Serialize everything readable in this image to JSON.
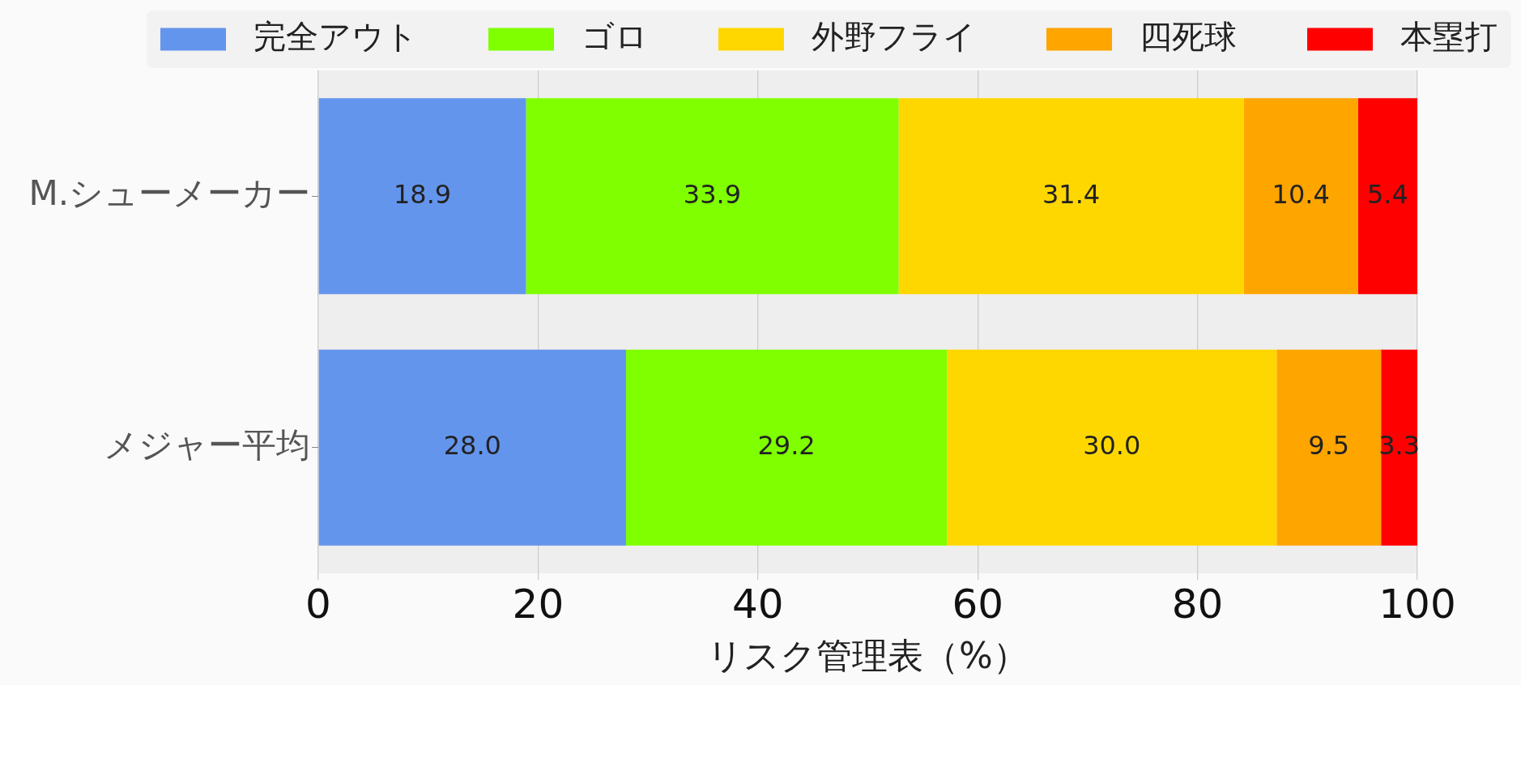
{
  "chart_data": {
    "type": "bar",
    "orientation": "horizontal",
    "stacked": true,
    "categories": [
      "M.シューメーカー",
      "メジャー平均"
    ],
    "series": [
      {
        "name": "完全アウト",
        "color": "#6495ed",
        "values": [
          18.9,
          28.0
        ],
        "value_labels": [
          "18.9",
          "28.0"
        ]
      },
      {
        "name": "ゴロ",
        "color": "#7fff00",
        "values": [
          33.9,
          29.2
        ],
        "value_labels": [
          "33.9",
          "29.2"
        ]
      },
      {
        "name": "外野フライ",
        "color": "#ffd700",
        "values": [
          31.4,
          30.0
        ],
        "value_labels": [
          "31.4",
          "30.0"
        ]
      },
      {
        "name": "四死球",
        "color": "#ffa500",
        "values": [
          10.4,
          9.5
        ],
        "value_labels": [
          "10.4",
          "9.5"
        ]
      },
      {
        "name": "本塁打",
        "color": "#ff0000",
        "values": [
          5.4,
          3.3
        ],
        "value_labels": [
          "5.4",
          "3.3"
        ]
      }
    ],
    "xlim": [
      0,
      100
    ],
    "xticks": [
      0,
      20,
      40,
      60,
      80,
      100
    ],
    "xlabel": "リスク管理表（%）",
    "grid": "x",
    "legend": "top right"
  }
}
